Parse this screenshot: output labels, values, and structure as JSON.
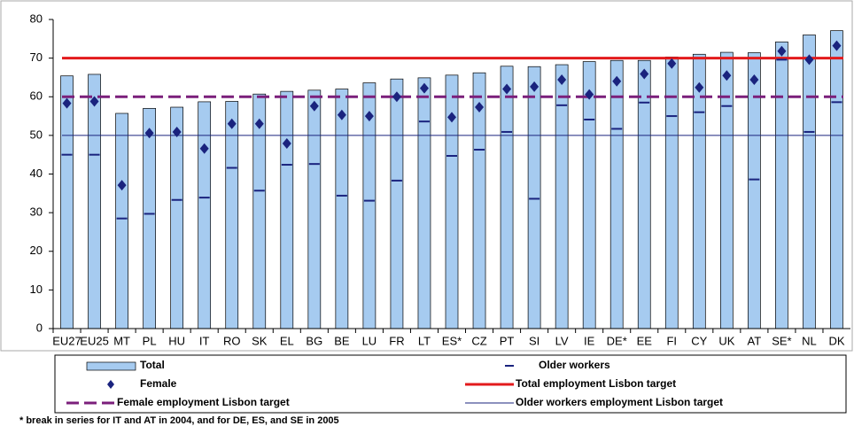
{
  "chart_data": {
    "type": "bar",
    "categories": [
      "EU27",
      "EU25",
      "MT",
      "PL",
      "HU",
      "IT",
      "RO",
      "SK",
      "EL",
      "BG",
      "BE",
      "LU",
      "FR",
      "LT",
      "ES*",
      "CZ",
      "PT",
      "SI",
      "LV",
      "IE",
      "DE*",
      "EE",
      "FI",
      "CY",
      "UK",
      "AT",
      "SE*",
      "NL",
      "DK"
    ],
    "series": [
      {
        "name": "Total",
        "kind": "bar",
        "color": "#a6cbf0",
        "values": [
          65.4,
          65.8,
          55.7,
          57.0,
          57.3,
          58.7,
          58.8,
          60.7,
          61.4,
          61.7,
          62.0,
          63.6,
          64.6,
          64.9,
          65.6,
          66.2,
          67.9,
          67.8,
          68.3,
          69.1,
          69.4,
          69.4,
          70.3,
          71.0,
          71.5,
          71.4,
          74.2,
          76.0,
          77.1
        ]
      },
      {
        "name": "Female",
        "kind": "diamond",
        "color": "#1a237e",
        "values": [
          58.3,
          58.8,
          37.1,
          50.6,
          50.9,
          46.6,
          53.0,
          53.0,
          47.9,
          57.6,
          55.3,
          55.0,
          60.0,
          62.2,
          54.7,
          57.3,
          62.0,
          62.6,
          64.4,
          60.6,
          64.0,
          65.9,
          68.6,
          62.4,
          65.5,
          64.4,
          71.8,
          69.6,
          73.2
        ]
      },
      {
        "name": "Older workers",
        "kind": "dash",
        "color": "#1a237e",
        "values": [
          45.0,
          45.0,
          28.5,
          29.7,
          33.3,
          33.9,
          41.6,
          35.7,
          42.4,
          42.6,
          34.4,
          33.1,
          38.3,
          53.6,
          44.7,
          46.3,
          50.9,
          33.6,
          57.8,
          54.1,
          51.7,
          58.5,
          55.0,
          56.0,
          57.6,
          38.6,
          69.6,
          50.9,
          58.6
        ]
      }
    ],
    "reference_lines": [
      {
        "name": "Total employment Lisbon target",
        "value": 70,
        "color": "#e31a1c",
        "style": "solid"
      },
      {
        "name": "Female employment Lisbon target",
        "value": 60,
        "color": "#7b1f7b",
        "style": "dashed"
      },
      {
        "name": "Older workers employment Lisbon target",
        "value": 50,
        "color": "#1a237e",
        "style": "thin"
      }
    ],
    "ylim": [
      0,
      80
    ],
    "yticks": [
      0,
      10,
      20,
      30,
      40,
      50,
      60,
      70,
      80
    ],
    "note": "* break in series for IT and AT in 2004, and for DE, ES, and SE in 2005"
  }
}
